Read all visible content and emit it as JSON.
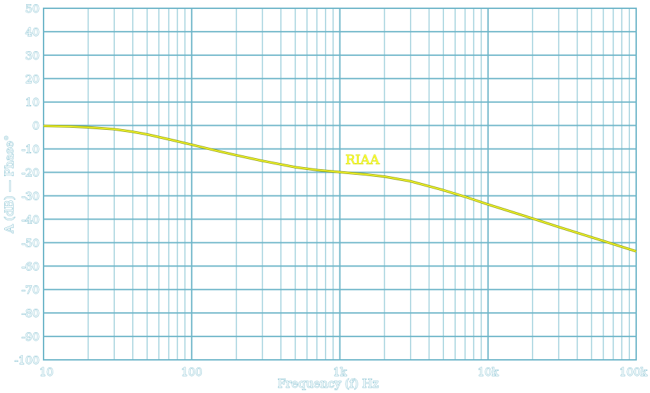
{
  "chart_data": {
    "type": "line",
    "xlabel": "Frequency (f) Hz",
    "ylabel": "A (dB) — Phase°",
    "x_scale": "log",
    "xlim": [
      10,
      100000
    ],
    "ylim": [
      -100,
      50
    ],
    "grid": true,
    "x_ticks": [
      {
        "value": 10,
        "label": "10"
      },
      {
        "value": 100,
        "label": "100"
      },
      {
        "value": 1000,
        "label": "1k"
      },
      {
        "value": 10000,
        "label": "10k"
      },
      {
        "value": 100000,
        "label": "100k"
      }
    ],
    "y_ticks": [
      {
        "value": 50,
        "label": "50"
      },
      {
        "value": 40,
        "label": "40"
      },
      {
        "value": 30,
        "label": "30"
      },
      {
        "value": 20,
        "label": "20"
      },
      {
        "value": 10,
        "label": "10"
      },
      {
        "value": 0,
        "label": "0"
      },
      {
        "value": -10,
        "label": "-10"
      },
      {
        "value": -20,
        "label": "-20"
      },
      {
        "value": -30,
        "label": "-30"
      },
      {
        "value": -40,
        "label": "-40"
      },
      {
        "value": -50,
        "label": "-50"
      },
      {
        "value": -60,
        "label": "-60"
      },
      {
        "value": -70,
        "label": "-70"
      },
      {
        "value": -80,
        "label": "-80"
      },
      {
        "value": -90,
        "label": "-90"
      },
      {
        "value": -100,
        "label": "-100"
      }
    ],
    "series": [
      {
        "name": "RIAA",
        "color": "#ffff33",
        "label_at": {
          "x": 1000,
          "y": -16.5
        },
        "points": [
          [
            10,
            -0.2
          ],
          [
            15,
            -0.4
          ],
          [
            20,
            -0.8
          ],
          [
            30,
            -1.6
          ],
          [
            40,
            -2.7
          ],
          [
            50,
            -3.8
          ],
          [
            70,
            -5.9
          ],
          [
            100,
            -8.2
          ],
          [
            150,
            -10.9
          ],
          [
            200,
            -12.7
          ],
          [
            300,
            -15.1
          ],
          [
            500,
            -17.8
          ],
          [
            700,
            -19.0
          ],
          [
            1000,
            -19.9
          ],
          [
            1500,
            -20.9
          ],
          [
            2000,
            -21.8
          ],
          [
            3000,
            -23.8
          ],
          [
            5000,
            -27.6
          ],
          [
            7000,
            -30.4
          ],
          [
            10000,
            -33.7
          ],
          [
            15000,
            -37.2
          ],
          [
            20000,
            -39.7
          ],
          [
            30000,
            -43.3
          ],
          [
            50000,
            -47.7
          ],
          [
            70000,
            -50.6
          ],
          [
            100000,
            -53.7
          ]
        ]
      }
    ],
    "colors": {
      "grid": "#6fb6c9",
      "grid_minor": "#9fd0dc",
      "axis_text": "#6fb6c9",
      "curve": "#ffff33",
      "curve_edge": "#8a9a00"
    }
  }
}
